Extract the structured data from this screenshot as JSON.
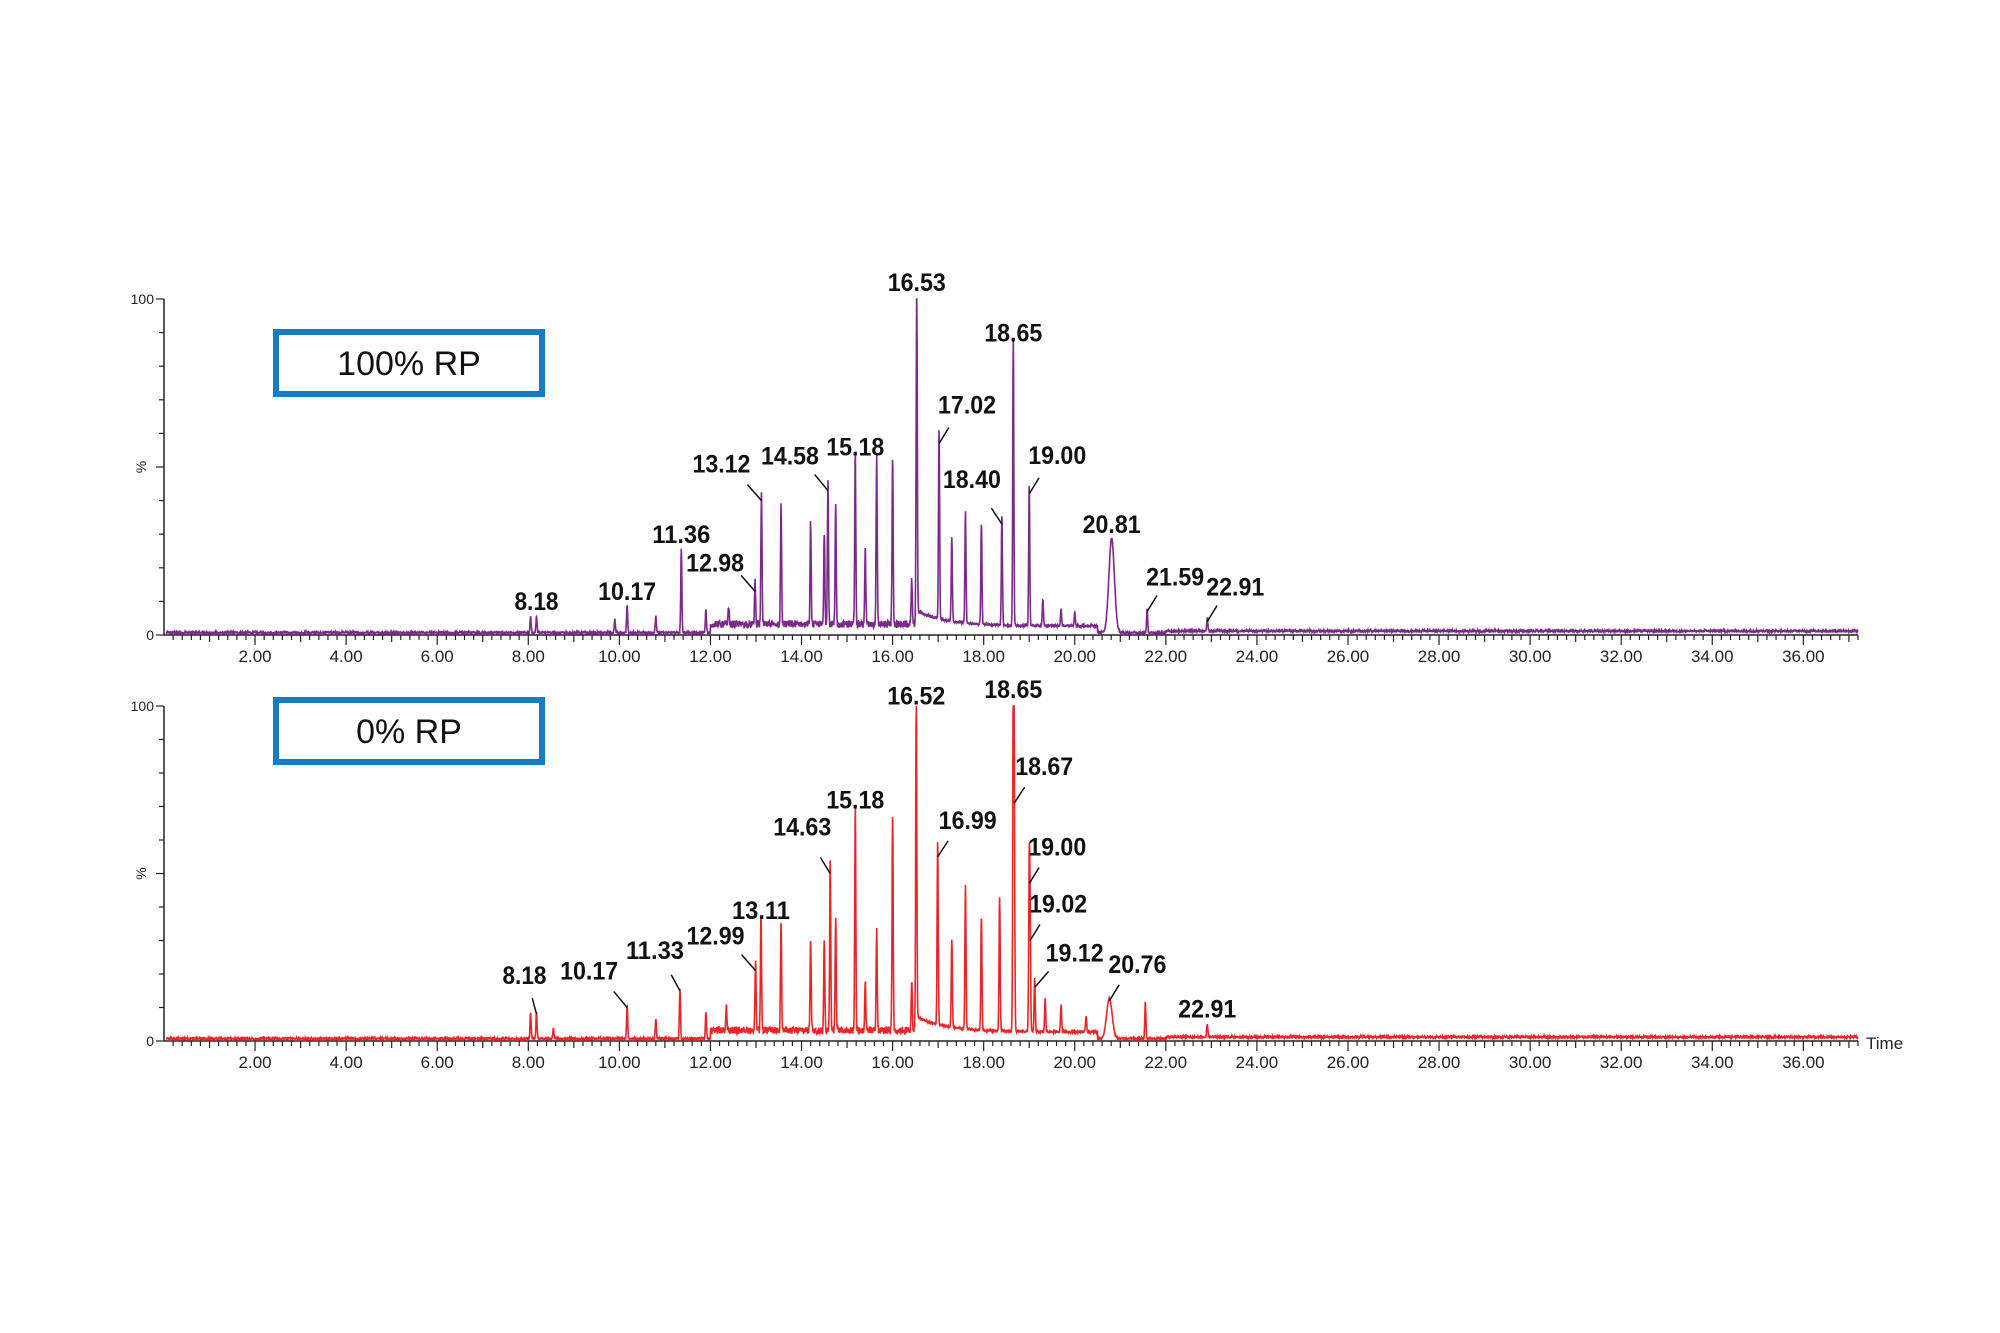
{
  "chart_data": [
    {
      "type": "line",
      "title": "",
      "legend_box": "100% RP",
      "xlabel": "",
      "ylabel": "%",
      "xlim": [
        0,
        37.2
      ],
      "ylim": [
        0,
        100
      ],
      "y_ticks": [
        "0",
        "100"
      ],
      "x_ticks": [
        "2.00",
        "4.00",
        "6.00",
        "8.00",
        "10.00",
        "12.00",
        "14.00",
        "16.00",
        "18.00",
        "20.00",
        "22.00",
        "24.00",
        "26.00",
        "28.00",
        "30.00",
        "32.00",
        "34.00",
        "36.00"
      ],
      "color": "#7b2a8a",
      "grid": false,
      "labeled_peaks": [
        {
          "x": 8.18,
          "y": 5,
          "label": "8.18"
        },
        {
          "x": 10.17,
          "y": 8,
          "label": "10.17"
        },
        {
          "x": 11.36,
          "y": 25,
          "label": "11.36"
        },
        {
          "x": 12.98,
          "y": 13,
          "label": "12.98"
        },
        {
          "x": 13.12,
          "y": 40,
          "label": "13.12"
        },
        {
          "x": 14.58,
          "y": 43,
          "label": "14.58"
        },
        {
          "x": 15.18,
          "y": 51,
          "label": "15.18"
        },
        {
          "x": 16.53,
          "y": 100,
          "label": "16.53"
        },
        {
          "x": 17.02,
          "y": 57,
          "label": "17.02"
        },
        {
          "x": 18.4,
          "y": 33,
          "label": "18.40"
        },
        {
          "x": 18.65,
          "y": 85,
          "label": "18.65"
        },
        {
          "x": 19.0,
          "y": 42,
          "label": "19.00"
        },
        {
          "x": 20.81,
          "y": 28,
          "label": "20.81"
        },
        {
          "x": 21.59,
          "y": 7,
          "label": "21.59"
        },
        {
          "x": 22.91,
          "y": 4,
          "label": "22.91"
        }
      ],
      "other_peaks": [
        {
          "x": 8.05,
          "y": 5
        },
        {
          "x": 9.9,
          "y": 4
        },
        {
          "x": 10.8,
          "y": 5
        },
        {
          "x": 11.9,
          "y": 7
        },
        {
          "x": 12.4,
          "y": 5
        },
        {
          "x": 13.55,
          "y": 35
        },
        {
          "x": 14.2,
          "y": 30
        },
        {
          "x": 14.5,
          "y": 28
        },
        {
          "x": 14.75,
          "y": 35
        },
        {
          "x": 15.4,
          "y": 22
        },
        {
          "x": 15.65,
          "y": 50
        },
        {
          "x": 16.0,
          "y": 49
        },
        {
          "x": 16.42,
          "y": 14
        },
        {
          "x": 17.3,
          "y": 25
        },
        {
          "x": 17.6,
          "y": 33
        },
        {
          "x": 17.95,
          "y": 30
        },
        {
          "x": 19.3,
          "y": 8
        },
        {
          "x": 19.7,
          "y": 5
        },
        {
          "x": 20.0,
          "y": 4
        }
      ]
    },
    {
      "type": "line",
      "title": "",
      "legend_box": "0% RP",
      "xlabel": "Time",
      "ylabel": "%",
      "xlim": [
        0,
        37.2
      ],
      "ylim": [
        0,
        100
      ],
      "y_ticks": [
        "0",
        "100"
      ],
      "x_ticks": [
        "2.00",
        "4.00",
        "6.00",
        "8.00",
        "10.00",
        "12.00",
        "14.00",
        "16.00",
        "18.00",
        "20.00",
        "22.00",
        "24.00",
        "26.00",
        "28.00",
        "30.00",
        "32.00",
        "34.00",
        "36.00"
      ],
      "color": "#e8262a",
      "grid": false,
      "labeled_peaks": [
        {
          "x": 8.18,
          "y": 8,
          "label": "8.18"
        },
        {
          "x": 10.17,
          "y": 10,
          "label": "10.17"
        },
        {
          "x": 11.33,
          "y": 15,
          "label": "11.33"
        },
        {
          "x": 12.99,
          "y": 21,
          "label": "12.99"
        },
        {
          "x": 13.11,
          "y": 34,
          "label": "13.11"
        },
        {
          "x": 14.63,
          "y": 50,
          "label": "14.63"
        },
        {
          "x": 15.18,
          "y": 67,
          "label": "15.18"
        },
        {
          "x": 16.52,
          "y": 98,
          "label": "16.52"
        },
        {
          "x": 16.99,
          "y": 55,
          "label": "16.99"
        },
        {
          "x": 18.65,
          "y": 100,
          "label": "18.65"
        },
        {
          "x": 18.67,
          "y": 71,
          "label": "18.67"
        },
        {
          "x": 19.0,
          "y": 47,
          "label": "19.00"
        },
        {
          "x": 19.02,
          "y": 30,
          "label": "19.02"
        },
        {
          "x": 19.12,
          "y": 16,
          "label": "19.12"
        },
        {
          "x": 20.76,
          "y": 12,
          "label": "20.76"
        },
        {
          "x": 22.91,
          "y": 4,
          "label": "22.91"
        }
      ],
      "other_peaks": [
        {
          "x": 8.05,
          "y": 8
        },
        {
          "x": 8.55,
          "y": 3
        },
        {
          "x": 10.8,
          "y": 6
        },
        {
          "x": 11.9,
          "y": 8
        },
        {
          "x": 12.35,
          "y": 7
        },
        {
          "x": 13.55,
          "y": 33
        },
        {
          "x": 14.2,
          "y": 28
        },
        {
          "x": 14.5,
          "y": 27
        },
        {
          "x": 14.75,
          "y": 33
        },
        {
          "x": 15.4,
          "y": 15
        },
        {
          "x": 15.65,
          "y": 30
        },
        {
          "x": 16.0,
          "y": 65
        },
        {
          "x": 16.42,
          "y": 14
        },
        {
          "x": 17.3,
          "y": 26
        },
        {
          "x": 17.6,
          "y": 43
        },
        {
          "x": 17.95,
          "y": 34
        },
        {
          "x": 18.35,
          "y": 40
        },
        {
          "x": 19.35,
          "y": 10
        },
        {
          "x": 19.7,
          "y": 8
        },
        {
          "x": 20.25,
          "y": 5
        },
        {
          "x": 21.55,
          "y": 11
        }
      ]
    }
  ]
}
